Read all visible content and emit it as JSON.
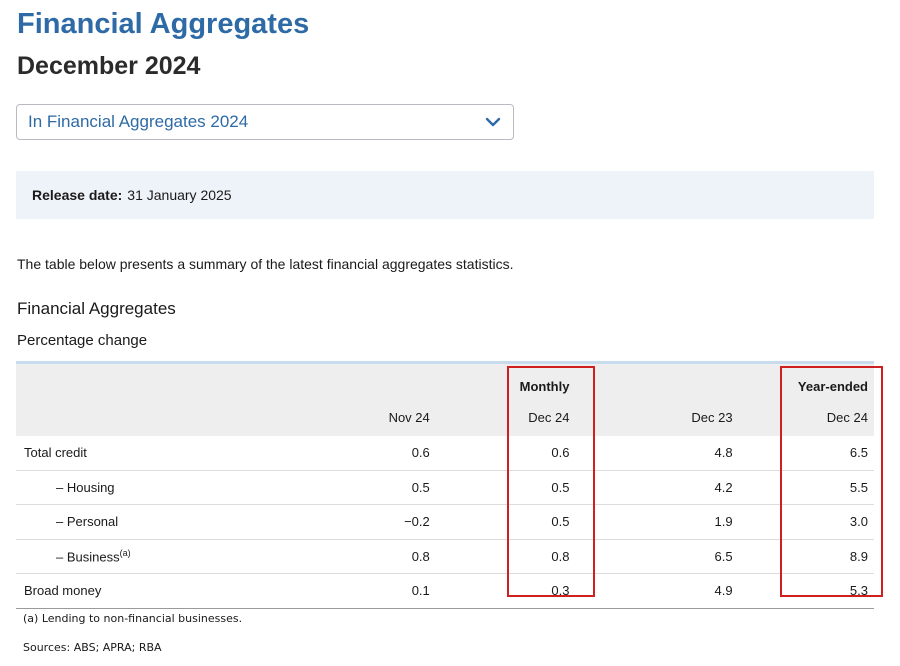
{
  "header": {
    "title": "Financial Aggregates",
    "subtitle": "December 2024"
  },
  "publication_select": {
    "selected": "In Financial Aggregates 2024"
  },
  "release": {
    "label": "Release date:",
    "value": "31 January 2025"
  },
  "intro": "The table below presents a summary of the latest financial aggregates statistics.",
  "table": {
    "title": "Financial Aggregates",
    "subtitle": "Percentage change",
    "group_headers": {
      "monthly": "Monthly",
      "year_ended": "Year-ended"
    },
    "columns": [
      "Nov 24",
      "Dec 24",
      "Dec 23",
      "Dec 24"
    ],
    "rows": [
      {
        "label": "Total credit",
        "values": [
          "0.6",
          "0.6",
          "4.8",
          "6.5"
        ]
      },
      {
        "label": "– Housing",
        "values": [
          "0.5",
          "0.5",
          "4.2",
          "5.5"
        ]
      },
      {
        "label": "– Personal",
        "values": [
          "−0.2",
          "0.5",
          "1.9",
          "3.0"
        ]
      },
      {
        "label": "– Business",
        "note": "(a)",
        "values": [
          "0.8",
          "0.8",
          "6.5",
          "8.9"
        ]
      },
      {
        "label": "Broad money",
        "values": [
          "0.1",
          "0.3",
          "4.9",
          "5.3"
        ]
      }
    ],
    "footnote": "(a) Lending to non-financial businesses.",
    "sources": "Sources: ABS; APRA; RBA"
  },
  "colors": {
    "title": "#2e6aa6",
    "release_bg": "#eef3f9",
    "table_header_bg": "#eeeeee",
    "highlight": "#d01f1f"
  },
  "icons": {
    "select_chevron": "chevron-down-icon"
  }
}
